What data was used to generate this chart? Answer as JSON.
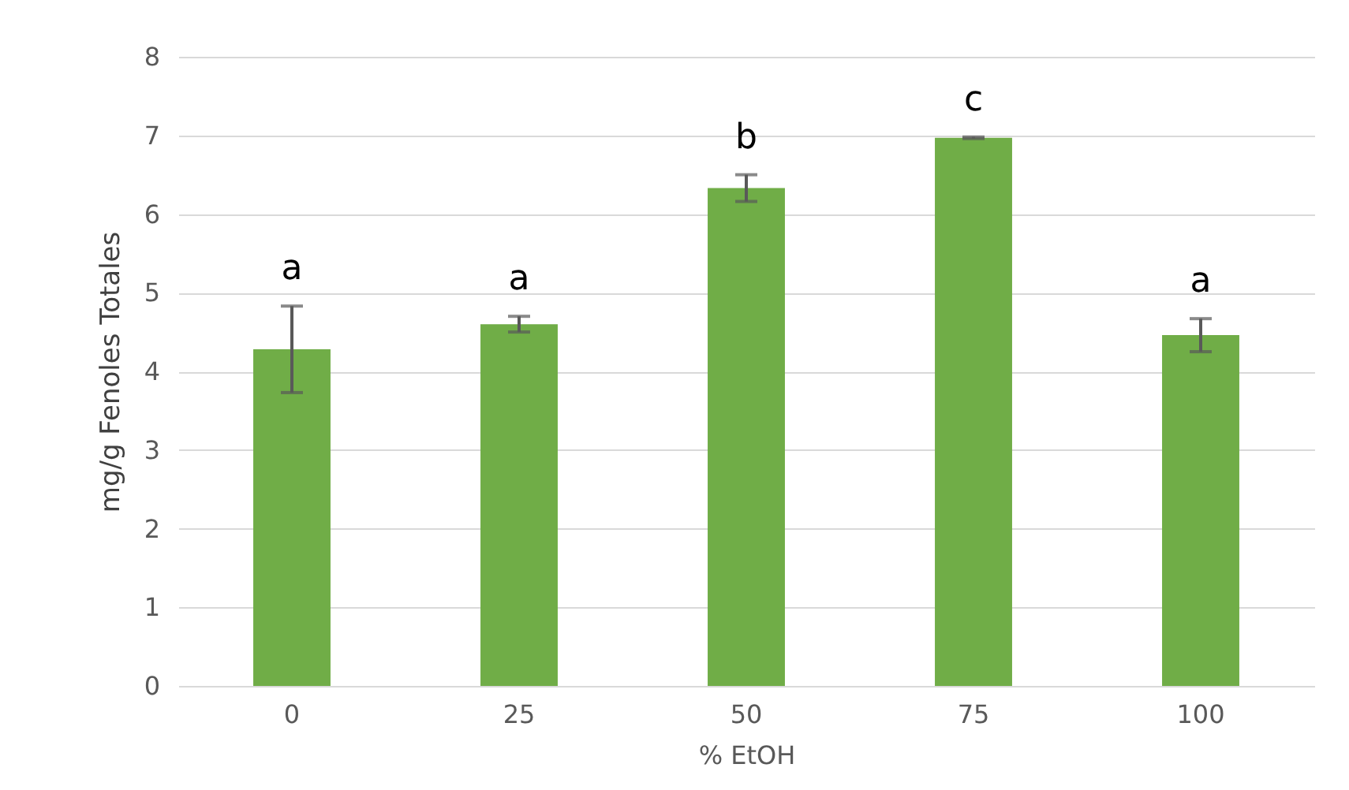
{
  "chart_data": {
    "type": "bar",
    "xlabel": "% EtOH",
    "ylabel": "mg/g Fenoles Totales",
    "categories": [
      "0",
      "25",
      "50",
      "75",
      "100"
    ],
    "values": [
      4.28,
      4.6,
      6.33,
      6.97,
      4.46
    ],
    "errors": [
      0.55,
      0.1,
      0.17,
      0.01,
      0.21
    ],
    "color": "#70ad47",
    "ylim": [
      0,
      8
    ],
    "yticks": [
      0,
      1,
      2,
      3,
      4,
      5,
      6,
      7,
      8
    ],
    "grid": "y",
    "annotations": [
      "a",
      "a",
      "b",
      "c",
      "a"
    ]
  }
}
